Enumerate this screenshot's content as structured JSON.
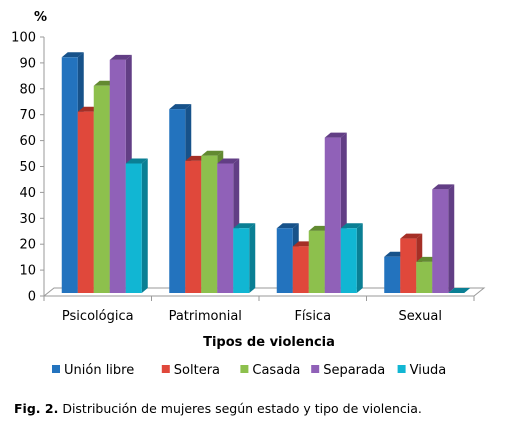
{
  "chart_data": {
    "type": "bar",
    "ylabel": "%",
    "xlabel": "Tipos de violencia",
    "categories": [
      "Psicológica",
      "Patrimonial",
      "Física",
      "Sexual"
    ],
    "series": [
      {
        "name": "Unión libre",
        "values": [
          91,
          71,
          25,
          14
        ]
      },
      {
        "name": "Soltera",
        "values": [
          70,
          51,
          18,
          21
        ]
      },
      {
        "name": "Casada",
        "values": [
          80,
          53,
          24,
          12
        ]
      },
      {
        "name": "Separada",
        "values": [
          90,
          50,
          60,
          40
        ]
      },
      {
        "name": "Viuda",
        "values": [
          50,
          25,
          25,
          0
        ]
      }
    ],
    "ylim": [
      0,
      100
    ],
    "yticks": [
      0,
      10,
      20,
      30,
      40,
      50,
      60,
      70,
      80,
      90,
      100
    ],
    "legend": "bottom",
    "grid": false,
    "colors": {
      "Unión libre": [
        "#2373BE",
        "#17528A"
      ],
      "Soltera": [
        "#E0483B",
        "#A52F26"
      ],
      "Casada": [
        "#8DC04D",
        "#628A31"
      ],
      "Separada": [
        "#9061B8",
        "#623E85"
      ],
      "Viuda": [
        "#11B6D3",
        "#0A7F94"
      ]
    }
  },
  "caption": {
    "label": "Fig. 2.",
    "text": "Distribución de mujeres según estado y tipo de violencia."
  }
}
